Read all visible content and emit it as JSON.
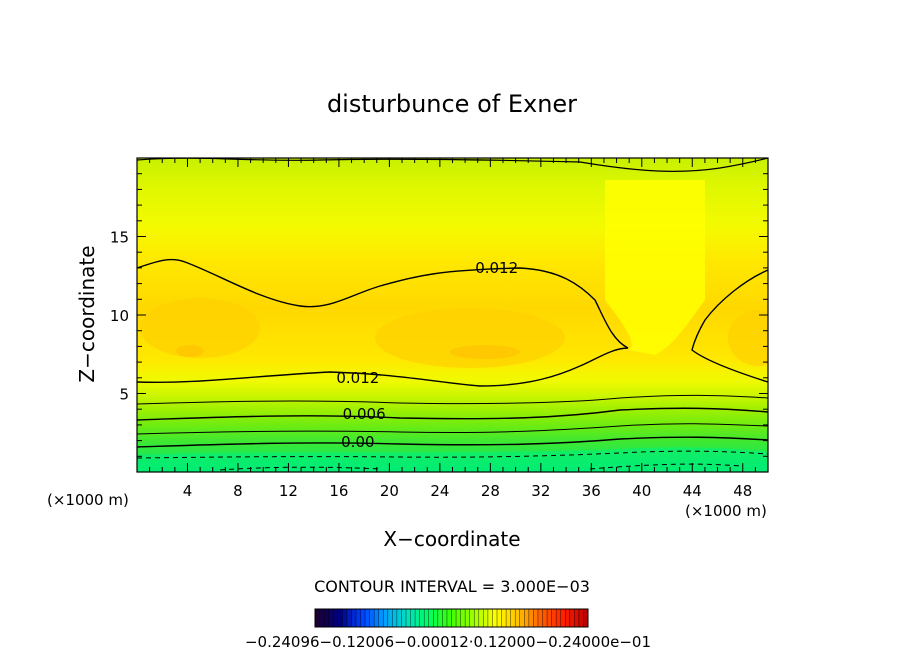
{
  "chart_data": {
    "type": "contour",
    "title": "disturbunce of Exner",
    "xlabel": "X−coordinate",
    "ylabel": "Z−coordinate",
    "x_unit_left": "(×1000 m)",
    "x_unit_right": "(×1000 m)",
    "xlim": [
      0,
      50
    ],
    "ylim": [
      0,
      20
    ],
    "x_ticks": [
      4,
      8,
      12,
      16,
      20,
      24,
      28,
      32,
      36,
      40,
      44,
      48
    ],
    "y_ticks": [
      5,
      10,
      15
    ],
    "contour_interval_text": "CONTOUR INTERVAL = 3.000E−03",
    "contour_labels": [
      {
        "text": "0.012",
        "x": 28.5,
        "z": 13.0
      },
      {
        "text": "0.012",
        "x": 17.5,
        "z": 6.0
      },
      {
        "text": "0.006",
        "x": 18.0,
        "z": 3.7
      },
      {
        "text": "0.00",
        "x": 17.5,
        "z": 1.9
      }
    ],
    "colorbar_label": "−0.24096−0.12006−0.00012·0.12000−0.24000e−01",
    "colorbar_colors": [
      "#1a0033",
      "#000080",
      "#0040ff",
      "#00a0ff",
      "#00e0c0",
      "#00ff60",
      "#40ff00",
      "#a0ff00",
      "#ffff00",
      "#ffc000",
      "#ff6000",
      "#ff2000",
      "#c00000"
    ]
  }
}
